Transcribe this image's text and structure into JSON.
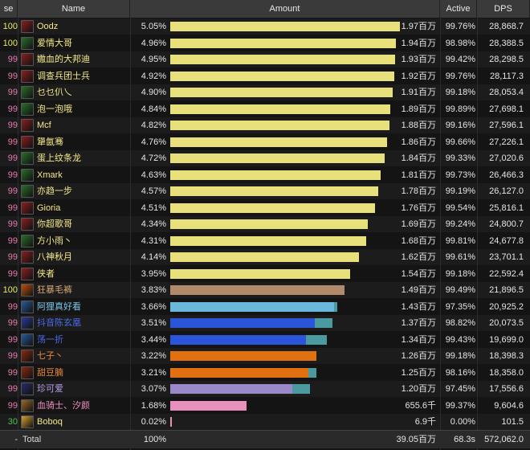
{
  "header": {
    "col_pct": "se %",
    "col_name": "Name",
    "col_amount": "Amount",
    "col_active": "Active",
    "col_dps": "DPS"
  },
  "rows": [
    {
      "pct": "100",
      "name": "Oodz",
      "share": "5.05%",
      "bar": 1.0,
      "bar2": 0,
      "amount": "1.97百万",
      "active": "99.76%",
      "dps": "28,868.7",
      "icon": "warrior-icon",
      "pct_color": "#e8e86a",
      "name_color": "#f5e88a",
      "bar_color": "#e8e07a",
      "bar2_color": "#e8e07a",
      "icon_color": "#8a2020"
    },
    {
      "pct": "100",
      "name": "爱情大哥",
      "share": "4.96%",
      "bar": 0.982,
      "bar2": 0,
      "amount": "1.94百万",
      "active": "98.98%",
      "dps": "28,388.5",
      "icon": "warrior-icon",
      "pct_color": "#e8e86a",
      "name_color": "#f5e88a",
      "bar_color": "#e8e07a",
      "bar2_color": "#e8e07a",
      "icon_color": "#2a6e2a"
    },
    {
      "pct": "99",
      "name": "嫐血的大邦迪",
      "share": "4.95%",
      "bar": 0.98,
      "bar2": 0,
      "amount": "1.93百万",
      "active": "99.42%",
      "dps": "28,298.5",
      "icon": "warrior-icon",
      "pct_color": "#e87ab0",
      "name_color": "#f5e88a",
      "bar_color": "#e8e07a",
      "bar2_color": "#e8e07a",
      "icon_color": "#8a2020"
    },
    {
      "pct": "99",
      "name": "调查兵团士兵",
      "share": "4.92%",
      "bar": 0.974,
      "bar2": 0,
      "amount": "1.92百万",
      "active": "99.76%",
      "dps": "28,117.3",
      "icon": "warrior-icon",
      "pct_color": "#e87ab0",
      "name_color": "#f5e88a",
      "bar_color": "#e8e07a",
      "bar2_color": "#e8e07a",
      "icon_color": "#8a2020"
    },
    {
      "pct": "99",
      "name": "乜乜仈乀",
      "share": "4.90%",
      "bar": 0.97,
      "bar2": 0,
      "amount": "1.91百万",
      "active": "99.18%",
      "dps": "28,053.4",
      "icon": "warrior-icon",
      "pct_color": "#e87ab0",
      "name_color": "#f5e88a",
      "bar_color": "#e8e07a",
      "bar2_color": "#e8e07a",
      "icon_color": "#2a6e2a"
    },
    {
      "pct": "99",
      "name": "泡一泡哦",
      "share": "4.84%",
      "bar": 0.958,
      "bar2": 0,
      "amount": "1.89百万",
      "active": "99.89%",
      "dps": "27,698.1",
      "icon": "warrior-icon",
      "pct_color": "#e87ab0",
      "name_color": "#f5e88a",
      "bar_color": "#e8e07a",
      "bar2_color": "#e8e07a",
      "icon_color": "#2a6e2a"
    },
    {
      "pct": "99",
      "name": "Mcf",
      "share": "4.82%",
      "bar": 0.955,
      "bar2": 0,
      "amount": "1.88百万",
      "active": "99.16%",
      "dps": "27,596.1",
      "icon": "warrior-icon",
      "pct_color": "#e87ab0",
      "name_color": "#f5e88a",
      "bar_color": "#e8e07a",
      "bar2_color": "#e8e07a",
      "icon_color": "#8a2020"
    },
    {
      "pct": "99",
      "name": "犟氤骞",
      "share": "4.76%",
      "bar": 0.943,
      "bar2": 0,
      "amount": "1.86百万",
      "active": "99.66%",
      "dps": "27,226.1",
      "icon": "warrior-icon",
      "pct_color": "#e87ab0",
      "name_color": "#f5e88a",
      "bar_color": "#e8e07a",
      "bar2_color": "#e8e07a",
      "icon_color": "#8a2020"
    },
    {
      "pct": "99",
      "name": "蛋上纹条龙",
      "share": "4.72%",
      "bar": 0.935,
      "bar2": 0,
      "amount": "1.84百万",
      "active": "99.33%",
      "dps": "27,020.6",
      "icon": "warrior-icon",
      "pct_color": "#e87ab0",
      "name_color": "#f5e88a",
      "bar_color": "#e8e07a",
      "bar2_color": "#e8e07a",
      "icon_color": "#2a6e2a"
    },
    {
      "pct": "99",
      "name": "Xmark",
      "share": "4.63%",
      "bar": 0.917,
      "bar2": 0,
      "amount": "1.81百万",
      "active": "99.73%",
      "dps": "26,466.3",
      "icon": "warrior-icon",
      "pct_color": "#e87ab0",
      "name_color": "#f5e88a",
      "bar_color": "#e8e07a",
      "bar2_color": "#e8e07a",
      "icon_color": "#2a6e2a"
    },
    {
      "pct": "99",
      "name": "亦趋一步",
      "share": "4.57%",
      "bar": 0.905,
      "bar2": 0,
      "amount": "1.78百万",
      "active": "99.19%",
      "dps": "26,127.0",
      "icon": "warrior-icon",
      "pct_color": "#e87ab0",
      "name_color": "#f5e88a",
      "bar_color": "#e8e07a",
      "bar2_color": "#e8e07a",
      "icon_color": "#2a6e2a"
    },
    {
      "pct": "99",
      "name": "Gioria",
      "share": "4.51%",
      "bar": 0.893,
      "bar2": 0,
      "amount": "1.76百万",
      "active": "99.54%",
      "dps": "25,816.1",
      "icon": "warrior-icon",
      "pct_color": "#e87ab0",
      "name_color": "#f5e88a",
      "bar_color": "#e8e07a",
      "bar2_color": "#e8e07a",
      "icon_color": "#8a2020"
    },
    {
      "pct": "99",
      "name": "你超歌哥",
      "share": "4.34%",
      "bar": 0.86,
      "bar2": 0,
      "amount": "1.69百万",
      "active": "99.24%",
      "dps": "24,800.7",
      "icon": "warrior-icon",
      "pct_color": "#e87ab0",
      "name_color": "#f5e88a",
      "bar_color": "#e8e07a",
      "bar2_color": "#e8e07a",
      "icon_color": "#8a2020"
    },
    {
      "pct": "99",
      "name": "方小雨丶",
      "share": "4.31%",
      "bar": 0.853,
      "bar2": 0,
      "amount": "1.68百万",
      "active": "99.81%",
      "dps": "24,677.8",
      "icon": "warrior-icon",
      "pct_color": "#e87ab0",
      "name_color": "#f5e88a",
      "bar_color": "#e8e07a",
      "bar2_color": "#e8e07a",
      "icon_color": "#2a6e2a"
    },
    {
      "pct": "99",
      "name": "八神秋月",
      "share": "4.14%",
      "bar": 0.82,
      "bar2": 0,
      "amount": "1.62百万",
      "active": "99.61%",
      "dps": "23,701.1",
      "icon": "warrior-icon",
      "pct_color": "#e87ab0",
      "name_color": "#f5e88a",
      "bar_color": "#e8e07a",
      "bar2_color": "#e8e07a",
      "icon_color": "#8a2020"
    },
    {
      "pct": "99",
      "name": "侠者",
      "share": "3.95%",
      "bar": 0.782,
      "bar2": 0,
      "amount": "1.54百万",
      "active": "99.18%",
      "dps": "22,592.4",
      "icon": "warrior-icon",
      "pct_color": "#e87ab0",
      "name_color": "#f5e88a",
      "bar_color": "#e8e07a",
      "bar2_color": "#e8e07a",
      "icon_color": "#8a2020"
    },
    {
      "pct": "100",
      "name": "狂暴毛裤",
      "share": "3.83%",
      "bar": 0.758,
      "bar2": 0,
      "amount": "1.49百万",
      "active": "99.49%",
      "dps": "21,896.5",
      "icon": "druid-icon",
      "pct_color": "#e8e86a",
      "name_color": "#d8a878",
      "bar_color": "#b08a6a",
      "bar2_color": "#b08a6a",
      "icon_color": "#c05010"
    },
    {
      "pct": "99",
      "name": "阿狸真好看",
      "share": "3.66%",
      "bar": 0.715,
      "bar2": 0.015,
      "amount": "1.43百万",
      "active": "97.35%",
      "dps": "20,925.2",
      "icon": "mage-icon",
      "pct_color": "#e87ab0",
      "name_color": "#7ac8e8",
      "bar_color": "#6ab8dc",
      "bar2_color": "#4a9aa0",
      "icon_color": "#2a5a9a"
    },
    {
      "pct": "99",
      "name": "抖音陈玄凰",
      "share": "3.51%",
      "bar": 0.63,
      "bar2": 0.076,
      "amount": "1.37百万",
      "active": "98.82%",
      "dps": "20,073.5",
      "icon": "shaman-icon",
      "pct_color": "#e87ab0",
      "name_color": "#4a6ae8",
      "bar_color": "#2a55d8",
      "bar2_color": "#4a9aa0",
      "icon_color": "#2a3a9a"
    },
    {
      "pct": "99",
      "name": "荡一折",
      "share": "3.44%",
      "bar": 0.59,
      "bar2": 0.092,
      "amount": "1.34百万",
      "active": "99.43%",
      "dps": "19,699.0",
      "icon": "shaman-icon",
      "pct_color": "#e87ab0",
      "name_color": "#4a6ae8",
      "bar_color": "#2a55d8",
      "bar2_color": "#4a9aa0",
      "icon_color": "#2a5a9a"
    },
    {
      "pct": "99",
      "name": "七子丶",
      "share": "3.22%",
      "bar": 0.638,
      "bar2": 0,
      "amount": "1.26百万",
      "active": "99.18%",
      "dps": "18,398.3",
      "icon": "rogue-icon",
      "pct_color": "#e87ab0",
      "name_color": "#e8883a",
      "bar_color": "#e07010",
      "bar2_color": "#e07010",
      "icon_color": "#8a2a10"
    },
    {
      "pct": "99",
      "name": "甜豆腩",
      "share": "3.21%",
      "bar": 0.6,
      "bar2": 0.036,
      "amount": "1.25百万",
      "active": "98.16%",
      "dps": "18,358.0",
      "icon": "rogue-icon",
      "pct_color": "#e87ab0",
      "name_color": "#e8883a",
      "bar_color": "#e07010",
      "bar2_color": "#4a9aa0",
      "icon_color": "#8a2a10"
    },
    {
      "pct": "99",
      "name": "珍可爱",
      "share": "3.07%",
      "bar": 0.53,
      "bar2": 0.078,
      "amount": "1.20百万",
      "active": "97.45%",
      "dps": "17,556.6",
      "icon": "warlock-icon",
      "pct_color": "#e87ab0",
      "name_color": "#b8a0e8",
      "bar_color": "#9a88c8",
      "bar2_color": "#4a9aa0",
      "icon_color": "#2a2a6a"
    },
    {
      "pct": "99",
      "name": "血骑士、汐颜",
      "share": "1.68%",
      "bar": 0.333,
      "bar2": 0,
      "amount": "655.6千",
      "active": "99.37%",
      "dps": "9,604.6",
      "icon": "paladin-icon",
      "pct_color": "#e87ab0",
      "name_color": "#f090c0",
      "bar_color": "#e890bc",
      "bar2_color": "#e890bc",
      "icon_color": "#9a6a2a"
    },
    {
      "pct": "30",
      "name": "Boboq",
      "share": "0.02%",
      "bar": 0.004,
      "bar2": 0,
      "amount": "6.9千",
      "active": "0.00%",
      "dps": "101.5",
      "icon": "priest-icon",
      "pct_color": "#50c050",
      "name_color": "#f5e88a",
      "bar_color": "#e890bc",
      "bar2_color": "#e890bc",
      "icon_color": "#d8a030"
    }
  ],
  "total": {
    "pct": "-",
    "name": "Total",
    "share": "100%",
    "amount": "39.05百万",
    "active": "68.3s",
    "dps": "572,062.0"
  }
}
